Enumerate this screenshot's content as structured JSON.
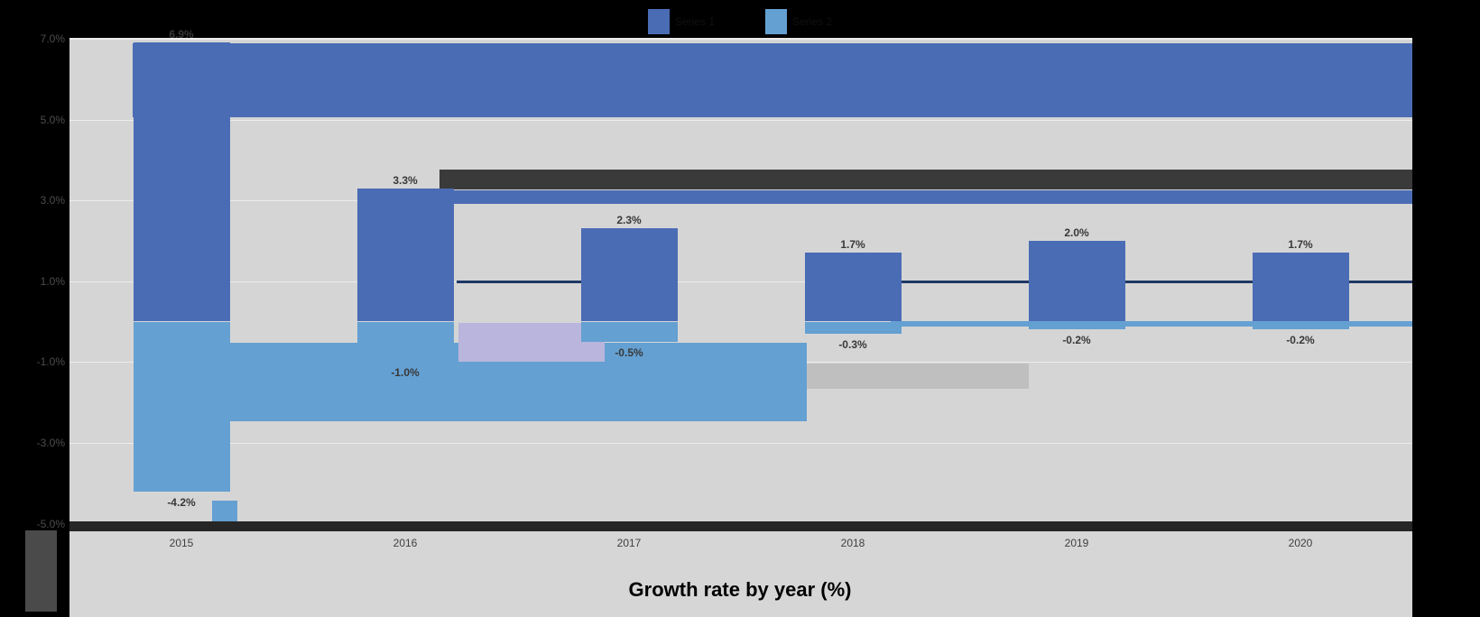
{
  "chart_data": {
    "type": "bar",
    "categories": [
      "2015",
      "2016",
      "2017",
      "2018",
      "2019",
      "2020"
    ],
    "series": [
      {
        "name": "Series 1",
        "color": "#4a6cb4",
        "values": [
          6.9,
          3.3,
          2.3,
          1.7,
          2.0,
          1.7
        ],
        "labels": [
          "6.9%",
          "3.3%",
          "2.3%",
          "1.7%",
          "2.0%",
          "1.7%"
        ]
      },
      {
        "name": "Series 2",
        "color": "#64a0d2",
        "values": [
          -4.2,
          -1.0,
          -0.5,
          -0.3,
          -0.2,
          -0.2
        ],
        "labels": [
          "-4.2%",
          "-1.0%",
          "-0.5%",
          "-0.3%",
          "-0.2%",
          "-0.2%"
        ]
      }
    ],
    "title": "Growth rate by year (%)",
    "xlabel": "",
    "ylabel": "",
    "ylim": [
      -5.9,
      7.0
    ],
    "yticks": {
      "values": [
        7,
        5,
        3,
        1,
        -1,
        -3,
        -5
      ],
      "labels": [
        "7.0%",
        "5.0%",
        "3.0%",
        "1.0%",
        "-1.0%",
        "-3.0%",
        "-5.0%"
      ]
    },
    "legend_position": "top",
    "grid": true
  },
  "title": {
    "text": "Growth rate by year (%)"
  },
  "legend": {
    "items": [
      {
        "label": "Series 1",
        "color": "#4a6cb4"
      },
      {
        "label": "Series 2",
        "color": "#64a0d2"
      }
    ]
  },
  "colors": {
    "positive_series": "#4a6cb4",
    "negative_series": "#64a0d2",
    "plot_background": "#d5d5d5",
    "page_background": "#000000",
    "lavender_artifact": "#b9b5dd",
    "axis_text": "#4d4d4d",
    "label_text": "#383838"
  }
}
